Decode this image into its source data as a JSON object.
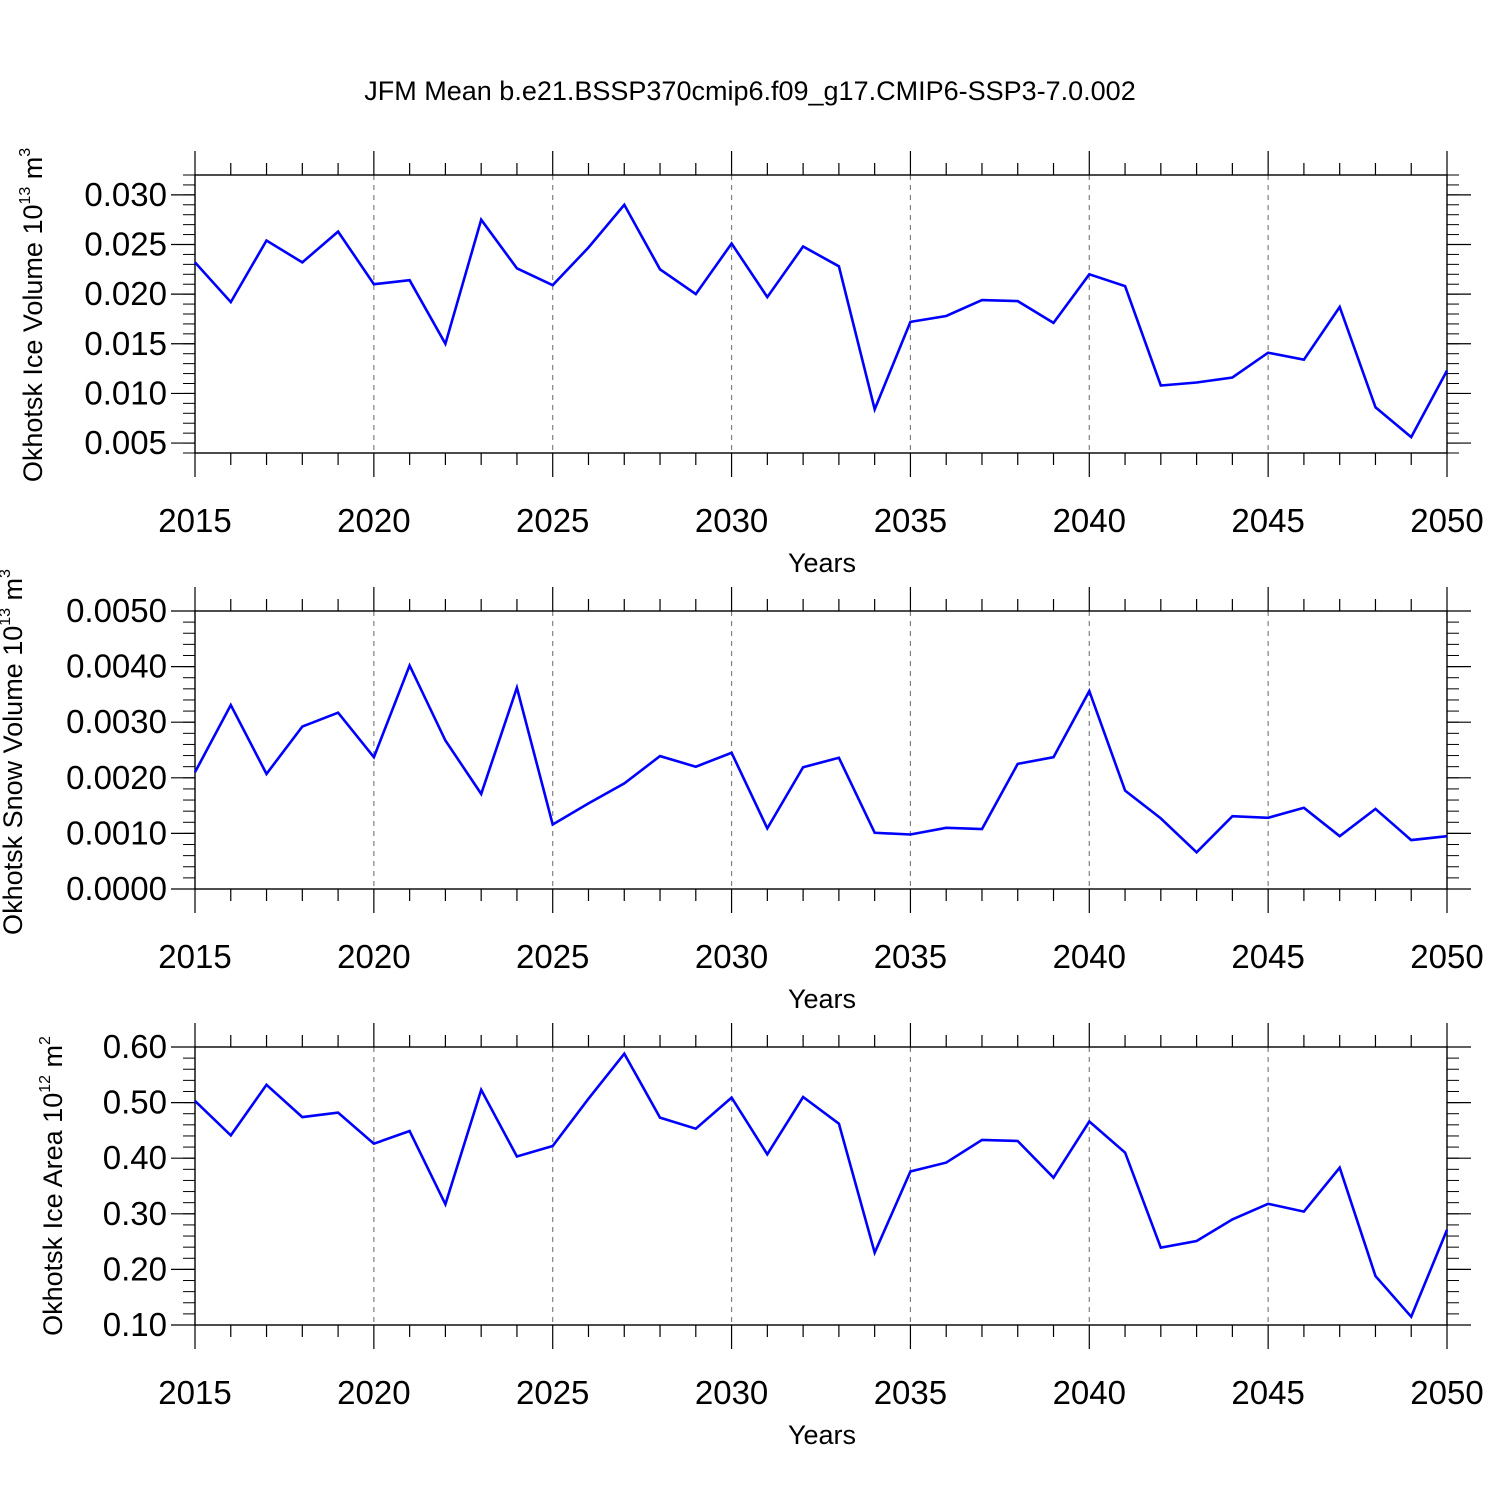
{
  "title": "JFM Mean b.e21.BSSP370cmip6.f09_g17.CMIP6-SSP3-7.0.002",
  "colors": {
    "series": "#0000ff",
    "axes": "#000000",
    "grid": "#808080"
  },
  "chart_data": [
    {
      "type": "line",
      "ylabel_main": "Okhotsk Ice Volume 10",
      "ylabel_exp": "13",
      "ylabel_unit": " m",
      "ylabel_unit_exp": "3",
      "xlabel": "Years",
      "xlim": [
        2015,
        2050
      ],
      "ylim": [
        0.004,
        0.032
      ],
      "x": [
        2015,
        2016,
        2017,
        2018,
        2019,
        2020,
        2021,
        2022,
        2023,
        2024,
        2025,
        2026,
        2027,
        2028,
        2029,
        2030,
        2031,
        2032,
        2033,
        2034,
        2035,
        2036,
        2037,
        2038,
        2039,
        2040,
        2041,
        2042,
        2043,
        2044,
        2045,
        2046,
        2047,
        2048,
        2049,
        2050
      ],
      "values": [
        0.0232,
        0.0192,
        0.0254,
        0.0232,
        0.0263,
        0.021,
        0.0214,
        0.015,
        0.0275,
        0.0226,
        0.0209,
        0.0247,
        0.029,
        0.0225,
        0.02,
        0.0251,
        0.0197,
        0.0248,
        0.0228,
        0.0084,
        0.0172,
        0.0178,
        0.0194,
        0.0193,
        0.0171,
        0.022,
        0.0208,
        0.0108,
        0.0111,
        0.0116,
        0.0141,
        0.0134,
        0.0187,
        0.0086,
        0.0056,
        0.0123
      ],
      "yticks": [
        "0.005",
        "0.010",
        "0.015",
        "0.020",
        "0.025",
        "0.030"
      ],
      "ytick_values": [
        0.005,
        0.01,
        0.015,
        0.02,
        0.025,
        0.03
      ],
      "xticks": [
        "2015",
        "2020",
        "2025",
        "2030",
        "2035",
        "2040",
        "2045",
        "2050"
      ],
      "xtick_values": [
        2015,
        2020,
        2025,
        2030,
        2035,
        2040,
        2045,
        2050
      ],
      "grid": "vertical dashed at major x ticks"
    },
    {
      "type": "line",
      "ylabel_main": "Okhotsk Snow Volume 10",
      "ylabel_exp": "13",
      "ylabel_unit": " m",
      "ylabel_unit_exp": "3",
      "xlabel": "Years",
      "xlim": [
        2015,
        2050
      ],
      "ylim": [
        0.0,
        0.005
      ],
      "x": [
        2015,
        2016,
        2017,
        2018,
        2019,
        2020,
        2021,
        2022,
        2023,
        2024,
        2025,
        2026,
        2027,
        2028,
        2029,
        2030,
        2031,
        2032,
        2033,
        2034,
        2035,
        2036,
        2037,
        2038,
        2039,
        2040,
        2041,
        2042,
        2043,
        2044,
        2045,
        2046,
        2047,
        2048,
        2049,
        2050
      ],
      "values": [
        0.0021,
        0.00331,
        0.00207,
        0.00292,
        0.00317,
        0.00237,
        0.00402,
        0.00267,
        0.00171,
        0.00362,
        0.00116,
        0.00154,
        0.0019,
        0.00239,
        0.0022,
        0.00245,
        0.00109,
        0.00219,
        0.00236,
        0.00101,
        0.00098,
        0.0011,
        0.00108,
        0.00225,
        0.00237,
        0.00356,
        0.00177,
        0.00127,
        0.00066,
        0.00131,
        0.00128,
        0.00146,
        0.00095,
        0.00144,
        0.00088,
        0.00095
      ],
      "yticks": [
        "0.0000",
        "0.0010",
        "0.0020",
        "0.0030",
        "0.0040",
        "0.0050"
      ],
      "ytick_values": [
        0.0,
        0.001,
        0.002,
        0.003,
        0.004,
        0.005
      ],
      "xticks": [
        "2015",
        "2020",
        "2025",
        "2030",
        "2035",
        "2040",
        "2045",
        "2050"
      ],
      "xtick_values": [
        2015,
        2020,
        2025,
        2030,
        2035,
        2040,
        2045,
        2050
      ],
      "grid": "vertical dashed at major x ticks"
    },
    {
      "type": "line",
      "ylabel_main": "Okhotsk Ice Area 10",
      "ylabel_exp": "12",
      "ylabel_unit": " m",
      "ylabel_unit_exp": "2",
      "xlabel": "Years",
      "xlim": [
        2015,
        2050
      ],
      "ylim": [
        0.1,
        0.6
      ],
      "x": [
        2015,
        2016,
        2017,
        2018,
        2019,
        2020,
        2021,
        2022,
        2023,
        2024,
        2025,
        2026,
        2027,
        2028,
        2029,
        2030,
        2031,
        2032,
        2033,
        2034,
        2035,
        2036,
        2037,
        2038,
        2039,
        2040,
        2041,
        2042,
        2043,
        2044,
        2045,
        2046,
        2047,
        2048,
        2049,
        2050
      ],
      "values": [
        0.503,
        0.441,
        0.532,
        0.474,
        0.482,
        0.426,
        0.449,
        0.317,
        0.523,
        0.403,
        0.422,
        0.507,
        0.588,
        0.473,
        0.453,
        0.509,
        0.407,
        0.51,
        0.462,
        0.23,
        0.376,
        0.392,
        0.433,
        0.431,
        0.365,
        0.466,
        0.41,
        0.239,
        0.251,
        0.29,
        0.318,
        0.304,
        0.383,
        0.188,
        0.115,
        0.271
      ],
      "yticks": [
        "0.10",
        "0.20",
        "0.30",
        "0.40",
        "0.50",
        "0.60"
      ],
      "ytick_values": [
        0.1,
        0.2,
        0.3,
        0.4,
        0.5,
        0.6
      ],
      "xticks": [
        "2015",
        "2020",
        "2025",
        "2030",
        "2035",
        "2040",
        "2045",
        "2050"
      ],
      "xtick_values": [
        2015,
        2020,
        2025,
        2030,
        2035,
        2040,
        2045,
        2050
      ],
      "grid": "vertical dashed at major x ticks"
    }
  ]
}
